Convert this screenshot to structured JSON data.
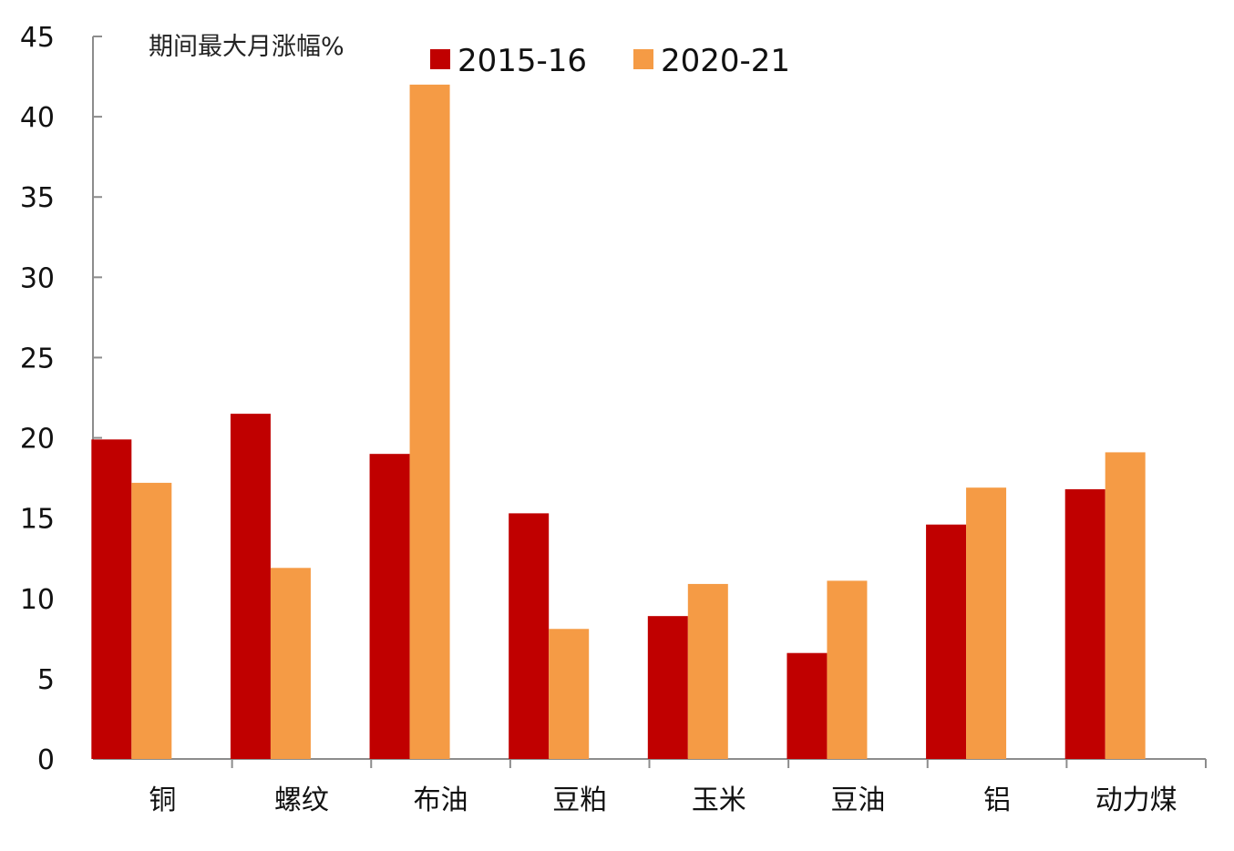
{
  "chart_data": {
    "type": "bar",
    "ylabel": "期间最大月涨幅%",
    "xlabel": "",
    "ylim": [
      0,
      45
    ],
    "yticks": [
      0,
      5,
      10,
      15,
      20,
      25,
      30,
      35,
      40,
      45
    ],
    "categories": [
      "铜",
      "螺纹",
      "布油",
      "豆粕",
      "玉米",
      "豆油",
      "铝",
      "动力煤"
    ],
    "series": [
      {
        "name": "2015-16",
        "color": "#c00000",
        "values": [
          19.9,
          21.5,
          19.0,
          15.3,
          8.9,
          6.6,
          14.6,
          16.8
        ]
      },
      {
        "name": "2020-21",
        "color": "#f59b45",
        "values": [
          17.2,
          11.9,
          42.0,
          8.1,
          10.9,
          11.1,
          16.9,
          19.1
        ]
      }
    ],
    "legend_position": "top-center",
    "grid": false
  }
}
